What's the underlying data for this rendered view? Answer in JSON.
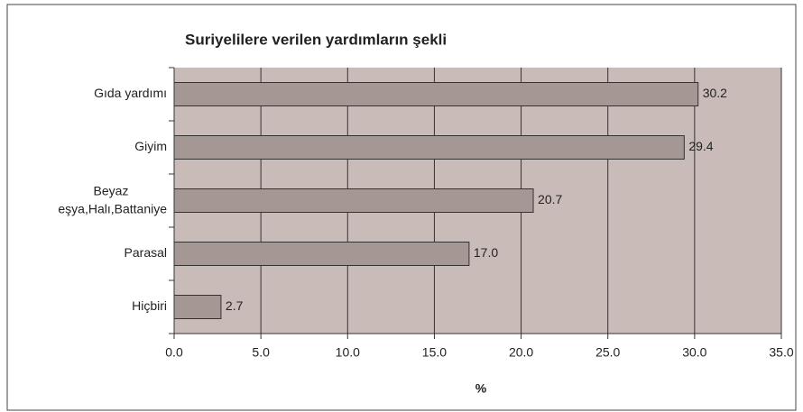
{
  "chart_data": {
    "type": "barh",
    "title": "Suriyelilere  verilen yardımların şekli",
    "xlabel": "%",
    "categories": [
      "Gıda yardımı",
      "Giyim",
      "Beyaz eşya,Halı,Battaniye",
      "Parasal",
      "Hiçbiri"
    ],
    "values": [
      30.2,
      29.4,
      20.7,
      17.0,
      2.7
    ],
    "value_labels": [
      "30.2",
      "29.4",
      "20.7",
      "17.0",
      "2.7"
    ],
    "color": "#a59894",
    "xlim": [
      0,
      35
    ],
    "xticks": [
      {
        "value": 0,
        "label": "0.0"
      },
      {
        "value": 5,
        "label": "5.0"
      },
      {
        "value": 10,
        "label": "10.0"
      },
      {
        "value": 15,
        "label": "15.0"
      },
      {
        "value": 20,
        "label": "20.0"
      },
      {
        "value": 25,
        "label": "25.0"
      },
      {
        "value": 30,
        "label": "30.0"
      },
      {
        "value": 35,
        "label": "35.0"
      }
    ],
    "grid": true
  }
}
